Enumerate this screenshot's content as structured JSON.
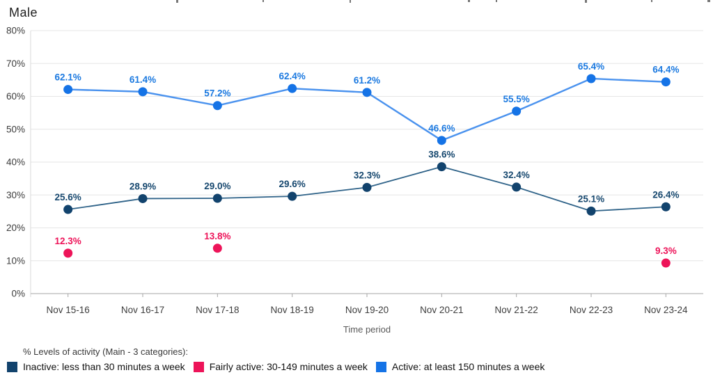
{
  "chart_data": {
    "type": "line",
    "title": "Male",
    "xlabel": "Time period",
    "x": [
      "Nov 15-16",
      "Nov 16-17",
      "Nov 17-18",
      "Nov 18-19",
      "Nov 19-20",
      "Nov 20-21",
      "Nov 21-22",
      "Nov 22-23",
      "Nov 23-24"
    ],
    "ylim": [
      0,
      80
    ],
    "ytick_step": 10,
    "yticks": [
      "80%",
      "70%",
      "60%",
      "50%",
      "40%",
      "30%",
      "20%",
      "10%",
      "0%"
    ],
    "grid": "horizontal",
    "legend_position": "bottom",
    "legend_heading": "% Levels of activity (Main - 3 categories):",
    "value_suffix": "%",
    "series": [
      {
        "name": "Inactive: less than 30 minutes a week",
        "color": "#12436d",
        "line_color": "#2e6288",
        "label_color": "#17486f",
        "values": [
          25.6,
          28.9,
          29.0,
          29.6,
          32.3,
          38.6,
          32.4,
          25.1,
          26.4
        ]
      },
      {
        "name": "Fairly active: 30-149 minutes a week",
        "color": "#ed1459",
        "line_color": "#ed1459",
        "label_color": "#ed1459",
        "values": [
          12.3,
          null,
          13.8,
          null,
          null,
          null,
          null,
          null,
          9.3
        ]
      },
      {
        "name": "Active: at least 150 minutes a week",
        "color": "#1573e6",
        "line_color": "#4a92ee",
        "label_color": "#1b79e0",
        "values": [
          62.1,
          61.4,
          57.2,
          62.4,
          61.2,
          46.6,
          55.5,
          65.4,
          64.4
        ]
      }
    ]
  }
}
